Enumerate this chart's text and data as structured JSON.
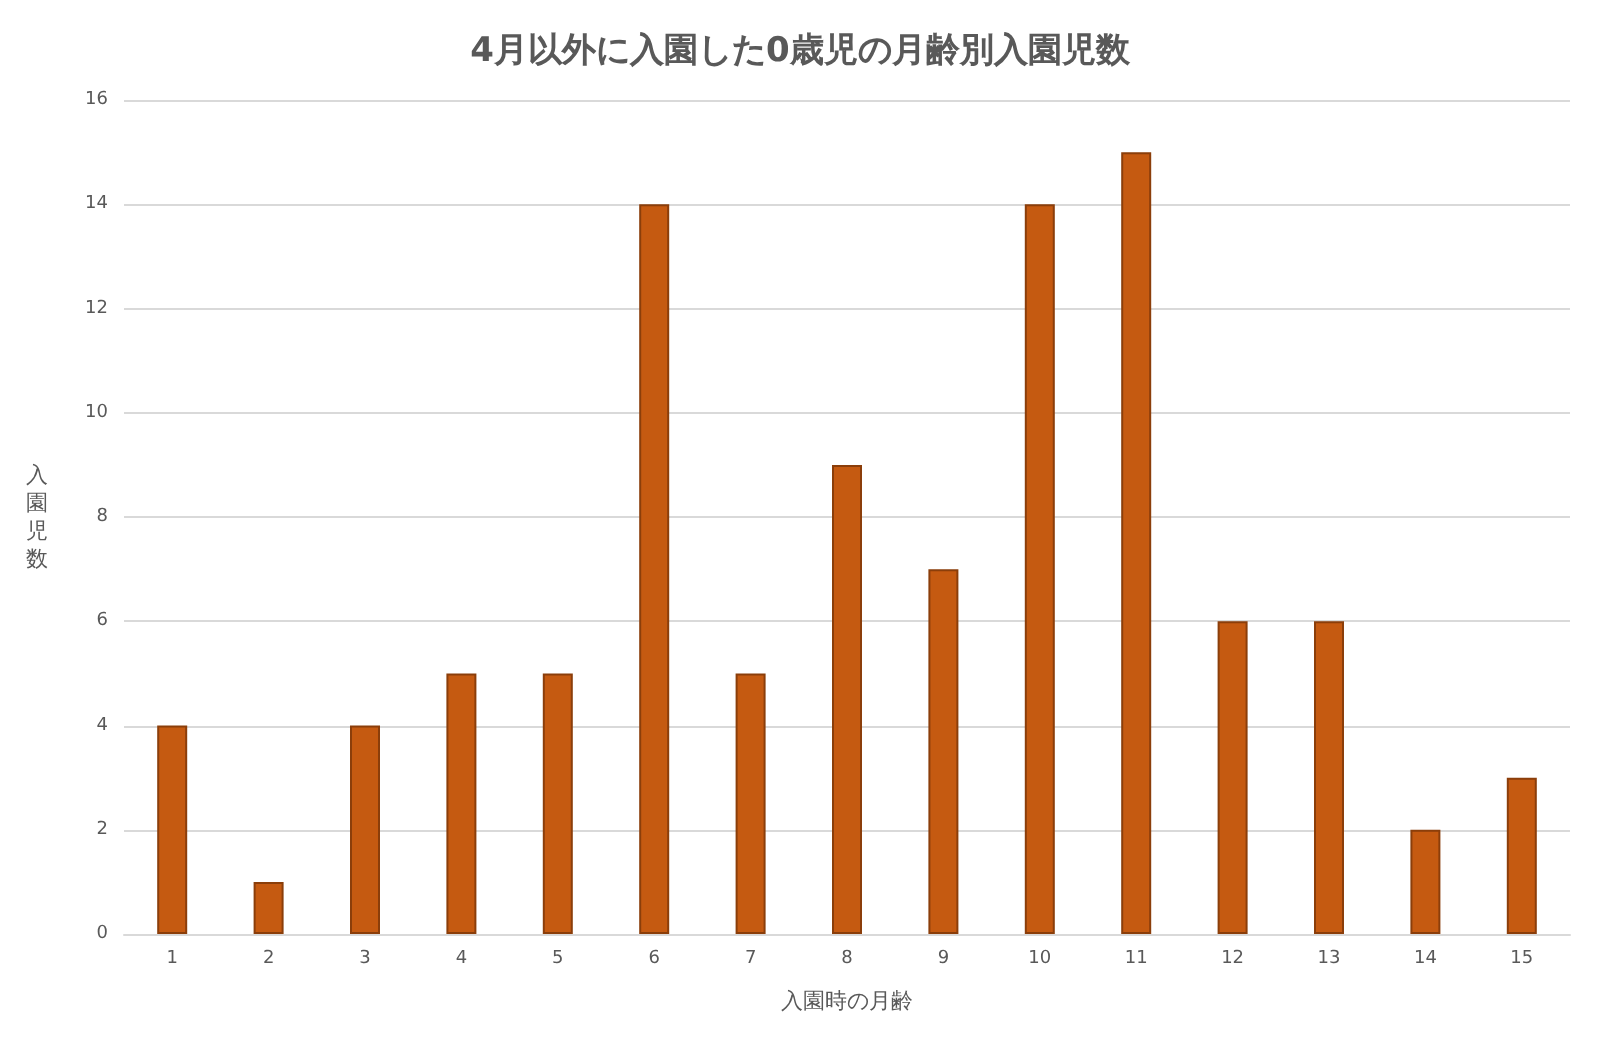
{
  "chart_data": {
    "type": "bar",
    "title": "4月以外に入園した0歳児の月齢別入園児数",
    "xlabel": "入園時の月齢",
    "ylabel": "入園児数",
    "categories": [
      "1",
      "2",
      "3",
      "4",
      "5",
      "6",
      "7",
      "8",
      "9",
      "10",
      "11",
      "12",
      "13",
      "14",
      "15"
    ],
    "values": [
      4,
      1,
      4,
      5,
      5,
      14,
      5,
      9,
      7,
      14,
      15,
      6,
      6,
      2,
      3
    ],
    "color": "#c55a11",
    "ylim": [
      0,
      16
    ],
    "yticks": [
      0,
      2,
      4,
      6,
      8,
      10,
      12,
      14,
      16
    ],
    "grid": "y"
  }
}
